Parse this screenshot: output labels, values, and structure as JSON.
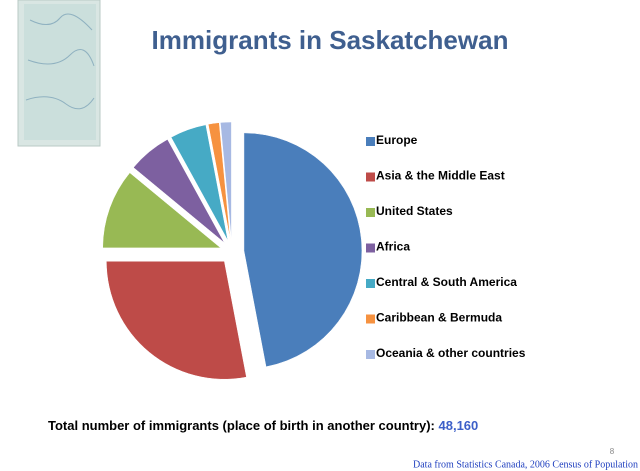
{
  "chart_data": {
    "type": "pie",
    "title": "Immigrants in Saskatchewan",
    "categories": [
      "Europe",
      "Asia & the Middle East",
      "United States",
      "Africa",
      "Central & South America",
      "Caribbean & Bermuda",
      "Oceania & other countries"
    ],
    "values": [
      47,
      28,
      11,
      6,
      5,
      1.5,
      1.5
    ],
    "colors": [
      "#4a7ebb",
      "#be4b48",
      "#98b954",
      "#7d60a0",
      "#46aac5",
      "#f69240",
      "#a7b9e3"
    ],
    "legend": "right",
    "total_label": "Total number of immigrants (place of birth in another country): ",
    "total_value": "48,160",
    "source": "Data from Statistics Canada, 2006 Census of Population",
    "slide_number": "8"
  }
}
